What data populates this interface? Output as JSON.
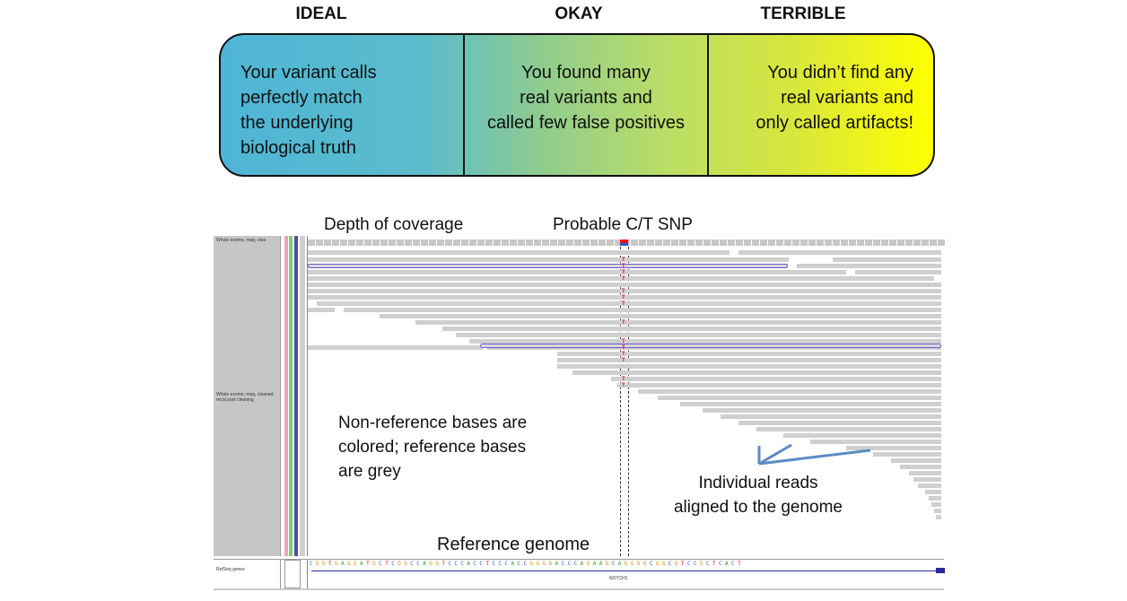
{
  "scale": {
    "ideal": {
      "header": "IDEAL",
      "lines": [
        "Your variant calls",
        "perfectly match",
        "the underlying",
        "biological truth"
      ]
    },
    "okay": {
      "header": "OKAY",
      "lines": [
        "You found many",
        "real variants and",
        "called few false positives"
      ]
    },
    "terrible": {
      "header": "TERRIBLE",
      "lines": [
        "You didn’t find any",
        "real variants and",
        "only called artifacts!"
      ]
    },
    "colors": {
      "start": "#4eb5d6",
      "middle": "#b9dd67",
      "end": "#ffff00"
    }
  },
  "igv": {
    "track_labels": {
      "top": "Whole exome, maq, clea",
      "middle": "Whole exome, maq, cleaned, recal post cleaning",
      "gene": "RefSeq genes"
    },
    "gene_name": "NOTCH1",
    "reference_sequence": "CGGTGAGGATGCTCGGCCAGGTCCCACCTCCCACCGGGGACCCAGAAGCAGGGGCGGCGTCCGCTCACT",
    "snp_base": "T",
    "colors": {
      "read": "#cfcfcf",
      "variant": "#e11111",
      "reference_C": "#2a5cc8",
      "pair_outline": "#6a5acd"
    }
  },
  "annotations": {
    "depth": "Depth of coverage",
    "snp": "Probable C/T SNP",
    "nonref": [
      "Non-reference bases are",
      "colored; reference bases",
      "are grey"
    ],
    "reads": [
      "Individual reads",
      "aligned to the genome"
    ],
    "reference": "Reference genome"
  }
}
